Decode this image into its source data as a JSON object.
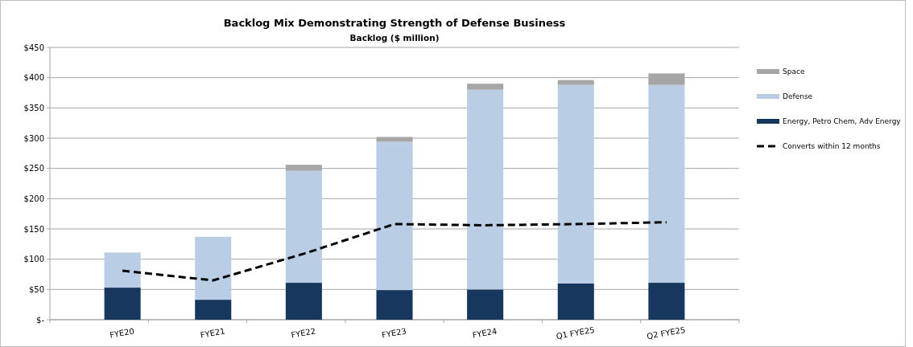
{
  "chart_data": {
    "type": "bar",
    "title": "Backlog Mix Demonstrating Strength of Defense Business",
    "subtitle": "Backlog ($ million)",
    "categories": [
      "FYE20",
      "FYE21",
      "FYE22",
      "FYE23",
      "FYE24",
      "Q1 FYE25",
      "Q2 FYE25"
    ],
    "stacked": true,
    "series": [
      {
        "name": "Energy, Petro Chem, Adv Energy",
        "color": "#17375e",
        "values": [
          53,
          33,
          61,
          49,
          50,
          60,
          61
        ]
      },
      {
        "name": "Defense",
        "color": "#b9cde5",
        "values": [
          58,
          104,
          185,
          245,
          330,
          328,
          327
        ]
      },
      {
        "name": "Space",
        "color": "#a6a6a6",
        "values": [
          0,
          0,
          10,
          8,
          10,
          8,
          19
        ]
      },
      {
        "name": "Converts within 12 months",
        "type": "line",
        "color": "#000000",
        "line_style": "dashed",
        "marker": "none",
        "values": [
          81,
          65,
          109,
          158,
          156,
          158,
          161
        ]
      }
    ],
    "ylim": [
      0,
      450
    ],
    "yticks": [
      {
        "value": 0,
        "label": "$-"
      },
      {
        "value": 50,
        "label": "$50"
      },
      {
        "value": 100,
        "label": "$100"
      },
      {
        "value": 150,
        "label": "$150"
      },
      {
        "value": 200,
        "label": "$200"
      },
      {
        "value": 250,
        "label": "$250"
      },
      {
        "value": 300,
        "label": "$300"
      },
      {
        "value": 350,
        "label": "$350"
      },
      {
        "value": 400,
        "label": "$400"
      },
      {
        "value": 450,
        "label": "$450"
      }
    ],
    "grid": "y",
    "legend": "right"
  }
}
